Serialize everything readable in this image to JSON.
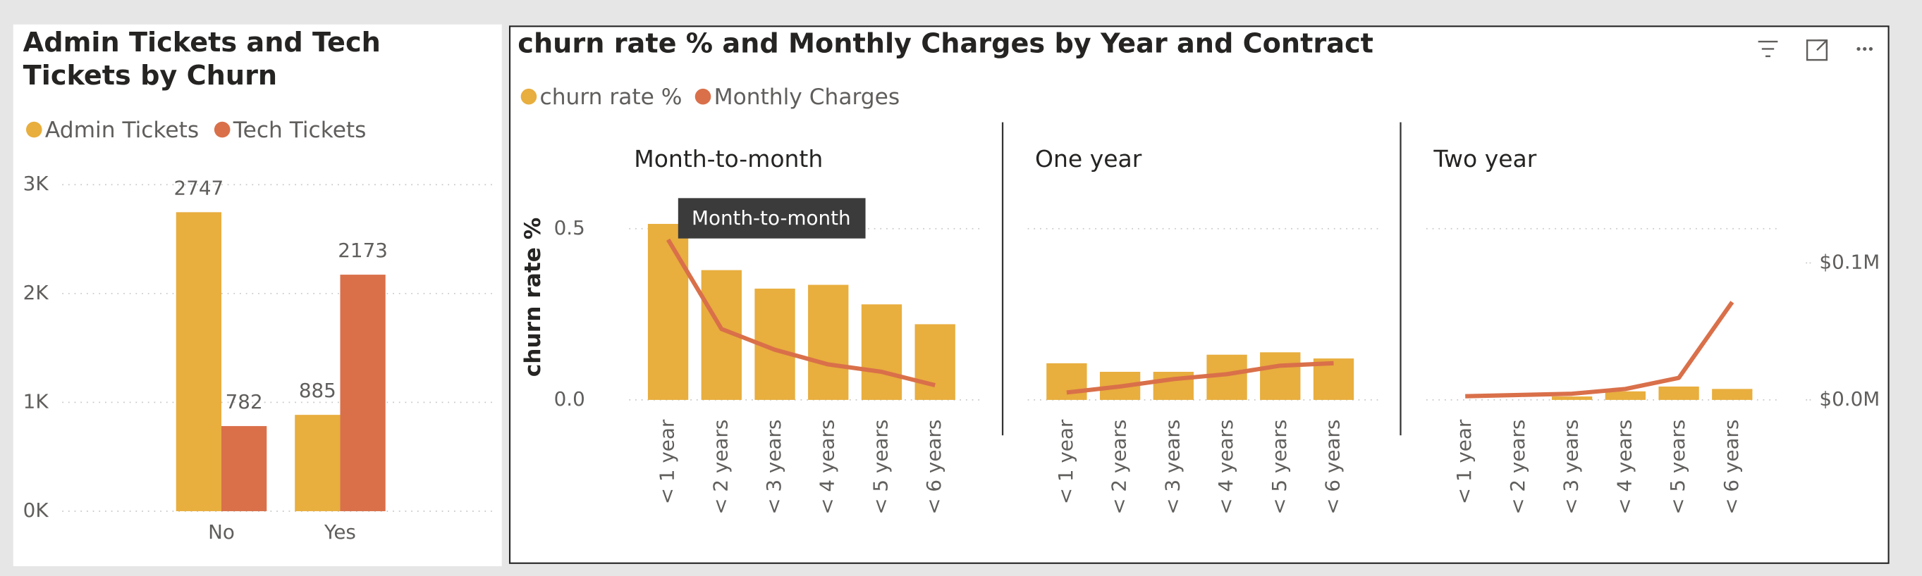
{
  "chart_data": [
    {
      "type": "bar",
      "title": "Admin Tickets and Tech Tickets by Churn",
      "categories": [
        "No",
        "Yes"
      ],
      "series": [
        {
          "name": "Admin Tickets",
          "color": "#e8ae3e",
          "values": [
            2747,
            885
          ]
        },
        {
          "name": "Tech Tickets",
          "color": "#d9704a",
          "values": [
            782,
            2173
          ]
        }
      ],
      "ylim": [
        0,
        3000
      ],
      "yticks": [
        {
          "value": 0,
          "label": "0K"
        },
        {
          "value": 1000,
          "label": "1K"
        },
        {
          "value": 2000,
          "label": "2K"
        },
        {
          "value": 3000,
          "label": "3K"
        }
      ],
      "grid": true
    },
    {
      "type": "combo",
      "title": "churn rate % and Monthly Charges by Year and Contract",
      "ylabel": "churn rate %",
      "series": [
        {
          "name": "churn rate %",
          "color": "#e8ae3e",
          "type": "bar"
        },
        {
          "name": "Monthly Charges",
          "color": "#d9704a",
          "type": "line",
          "axis": "y2"
        }
      ],
      "panels": [
        {
          "title": "Month-to-month",
          "categories": [
            "< 1 year",
            "< 2 years",
            "< 3 years",
            "< 4 years",
            "< 5 years",
            "< 6 years"
          ],
          "values": [
            [
              0.514,
              0.379,
              0.325,
              0.336,
              0.279,
              0.221
            ],
            [
              117000,
              51800,
              36600,
              25900,
              20500,
              10700
            ]
          ]
        },
        {
          "title": "One year",
          "categories": [
            "< 1 year",
            "< 2 years",
            "< 3 years",
            "< 4 years",
            "< 5 years",
            "< 6 years"
          ],
          "values": [
            [
              0.107,
              0.082,
              0.082,
              0.132,
              0.139,
              0.121
            ],
            [
              5400,
              9800,
              15200,
              18800,
              25000,
              26800
            ]
          ]
        },
        {
          "title": "Two year",
          "categories": [
            "< 1 year",
            "< 2 years",
            "< 3 years",
            "< 4 years",
            "< 5 years",
            "< 6 years"
          ],
          "values": [
            [
              0,
              0,
              0.01,
              0.025,
              0.039,
              0.032
            ],
            [
              2700,
              3600,
              4500,
              8000,
              16100,
              71400
            ]
          ]
        }
      ],
      "ylim": [
        0,
        0.65
      ],
      "yticks": [
        {
          "value": 0,
          "label": "0.0"
        },
        0.5
      ],
      "y2lim": [
        0,
        162500
      ],
      "y2ticks": [
        {
          "value": 0,
          "label": "$0.0M"
        },
        {
          "value": 100000,
          "label": "$0.1M"
        }
      ],
      "grid": true,
      "tooltip": "Month-to-month"
    }
  ]
}
